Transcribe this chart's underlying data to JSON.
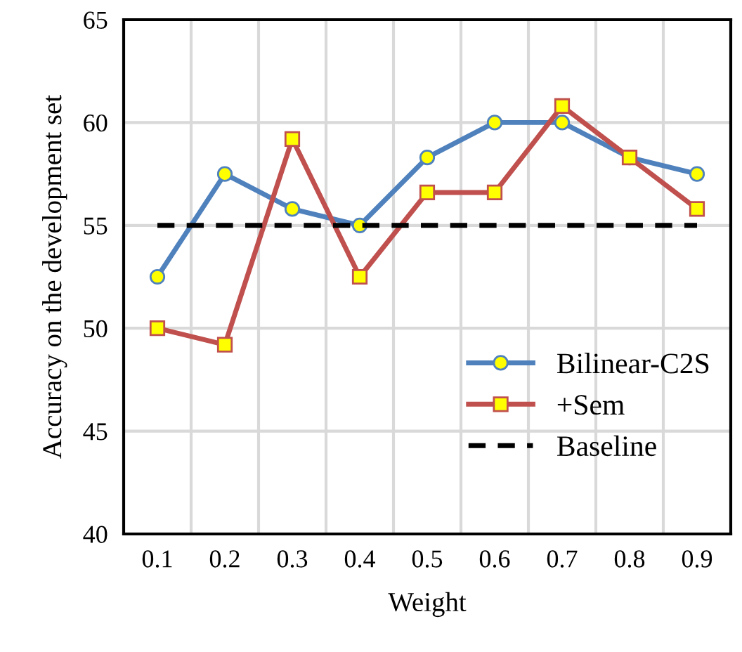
{
  "chart_data": {
    "type": "line",
    "xlabel": "Weight",
    "ylabel": "Accuracy on the development set",
    "categories": [
      "0.1",
      "0.2",
      "0.3",
      "0.4",
      "0.5",
      "0.6",
      "0.7",
      "0.8",
      "0.9"
    ],
    "series": [
      {
        "name": "Bilinear-C2S",
        "color": "#4f81bd",
        "marker": "circle",
        "line_style": "solid",
        "values": [
          52.5,
          57.5,
          55.8,
          55,
          58.3,
          60,
          60,
          58.3,
          57.5
        ]
      },
      {
        "name": "+Sem",
        "color": "#c0504d",
        "marker": "square",
        "line_style": "solid",
        "values": [
          50,
          49.2,
          59.2,
          52.5,
          56.6,
          56.6,
          60.8,
          58.3,
          55.8
        ]
      },
      {
        "name": "Baseline",
        "color": "#000000",
        "marker": "none",
        "line_style": "dashed",
        "values": [
          55,
          55,
          55,
          55,
          55,
          55,
          55,
          55,
          55
        ]
      }
    ],
    "ylim": [
      40,
      65
    ],
    "yticks": [
      40,
      45,
      50,
      55,
      60,
      65
    ],
    "grid": true,
    "legend": "bottom right"
  }
}
